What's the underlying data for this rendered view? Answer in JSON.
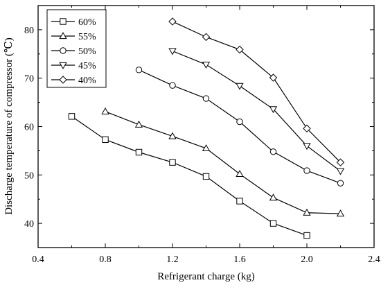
{
  "chart_data": {
    "type": "line",
    "xlabel": "Refrigerant charge (kg)",
    "ylabel": "Discharge temperature of compressor (℃)",
    "xlim": [
      0.4,
      2.4
    ],
    "ylim": [
      35,
      85
    ],
    "xticks": [
      "0.4",
      "0.8",
      "1.2",
      "1.6",
      "2.0",
      "2.4"
    ],
    "xtick_values": [
      0.4,
      0.8,
      1.2,
      1.6,
      2.0,
      2.4
    ],
    "yticks": [
      "40",
      "50",
      "60",
      "70",
      "80"
    ],
    "ytick_values": [
      40,
      50,
      60,
      70,
      80
    ],
    "grid": false,
    "legend_position": "top-left",
    "series": [
      {
        "name": "60%",
        "marker": "square",
        "x": [
          0.6,
          0.8,
          1.0,
          1.2,
          1.4,
          1.6,
          1.8,
          2.0
        ],
        "y": [
          62.1,
          57.3,
          54.7,
          52.6,
          49.7,
          44.6,
          40.0,
          37.5
        ]
      },
      {
        "name": "55%",
        "marker": "triangle-up",
        "x": [
          0.8,
          1.0,
          1.2,
          1.4,
          1.6,
          1.8,
          2.0,
          2.2
        ],
        "y": [
          63.1,
          60.4,
          58.0,
          55.5,
          50.2,
          45.3,
          42.2,
          42.0
        ]
      },
      {
        "name": "50%",
        "marker": "circle",
        "x": [
          1.0,
          1.2,
          1.4,
          1.6,
          1.8,
          2.0,
          2.2
        ],
        "y": [
          71.7,
          68.5,
          65.8,
          61.0,
          54.8,
          50.9,
          48.3
        ]
      },
      {
        "name": "45%",
        "marker": "triangle-down",
        "x": [
          1.2,
          1.4,
          1.6,
          1.8,
          2.0,
          2.2
        ],
        "y": [
          75.6,
          72.8,
          68.4,
          63.6,
          56.0,
          50.8
        ]
      },
      {
        "name": "40%",
        "marker": "diamond",
        "x": [
          1.2,
          1.4,
          1.6,
          1.8,
          2.0,
          2.2
        ],
        "y": [
          81.7,
          78.5,
          75.9,
          70.1,
          59.6,
          52.6
        ]
      }
    ]
  }
}
